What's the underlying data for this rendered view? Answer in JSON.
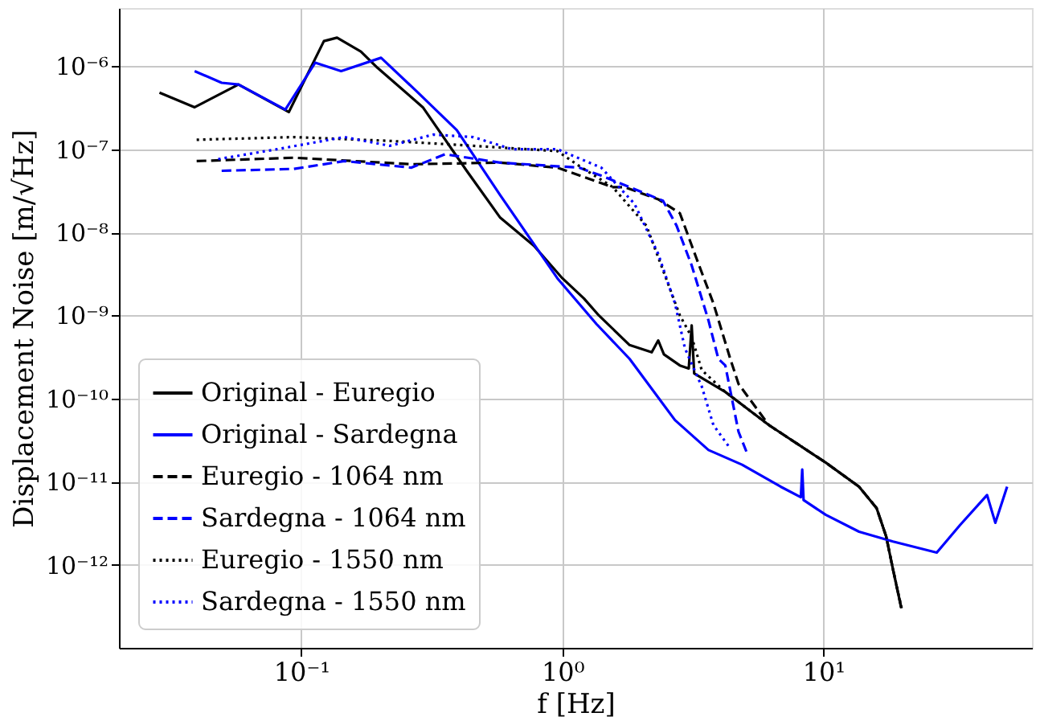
{
  "chart_data": {
    "type": "line",
    "xlabel": "f [Hz]",
    "ylabel": "Displacement Noise [m/√Hz]",
    "log": "xy",
    "grid": true,
    "legend": "bottom left",
    "xlim": [
      0.02,
      63
    ],
    "ylim": [
      1e-13,
      5e-06
    ],
    "xticks": [
      {
        "value": 0.1,
        "label": "10⁻¹"
      },
      {
        "value": 1,
        "label": "10⁰"
      },
      {
        "value": 10,
        "label": "10¹"
      }
    ],
    "yticks": [
      {
        "value": 1e-12,
        "label": "10⁻¹²"
      },
      {
        "value": 1e-11,
        "label": "10⁻¹¹"
      },
      {
        "value": 1e-10,
        "label": "10⁻¹⁰"
      },
      {
        "value": 1e-09,
        "label": "10⁻⁹"
      },
      {
        "value": 1e-08,
        "label": "10⁻⁸"
      },
      {
        "value": 1e-07,
        "label": "10⁻⁷"
      },
      {
        "value": 1e-06,
        "label": "10⁻⁶"
      }
    ],
    "series": [
      {
        "name": "Original - Euregio",
        "color": "#000000",
        "line_style": "solid",
        "x": [
          0.0286,
          0.039,
          0.0574,
          0.0895,
          0.122,
          0.137,
          0.169,
          0.196,
          0.292,
          0.43,
          0.578,
          0.778,
          1.0,
          1.21,
          1.38,
          1.81,
          2.2,
          2.33,
          2.45,
          2.82,
          3.05,
          3.13,
          3.2,
          4.21,
          6.18,
          10.2,
          13.7,
          16.0,
          17.4,
          18.5,
          19.9
        ],
        "values": [
          4.8e-07,
          3.2e-07,
          6e-07,
          2.8e-07,
          2e-06,
          2.2e-06,
          1.5e-06,
          9.5e-07,
          3.2e-07,
          5.5e-08,
          1.5e-08,
          6.9e-09,
          2.8e-09,
          1.6e-09,
          1e-09,
          4.4e-10,
          3.6e-10,
          5e-10,
          3.4e-10,
          2.5e-10,
          2.3e-10,
          7.6e-10,
          2e-10,
          1.2e-10,
          4.8e-11,
          1.7e-11,
          8.7e-12,
          4.8e-12,
          2.2e-12,
          8.7e-13,
          3e-13
        ]
      },
      {
        "name": "Original - Sardegna",
        "color": "#0000ff",
        "line_style": "solid",
        "x": [
          0.039,
          0.0495,
          0.0574,
          0.0868,
          0.113,
          0.142,
          0.202,
          0.276,
          0.394,
          0.578,
          0.957,
          1.35,
          1.81,
          2.7,
          3.63,
          4.88,
          6.86,
          8.2,
          8.3,
          8.4,
          10.2,
          13.7,
          18.5,
          27.2,
          33.4,
          42.4,
          45.6,
          50.6
        ],
        "values": [
          8.7e-07,
          6.3e-07,
          6e-07,
          3e-07,
          1.1e-06,
          8.7e-07,
          1.26e-06,
          5e-07,
          1.7e-07,
          2.8e-08,
          2.8e-09,
          7.9e-10,
          3e-10,
          5.5e-11,
          2.4e-11,
          1.6e-11,
          8.7e-12,
          6.5e-12,
          1.4e-11,
          6e-12,
          4e-12,
          2.5e-12,
          1.9e-12,
          1.4e-12,
          3e-12,
          6.9e-12,
          3.2e-12,
          8.7e-12
        ]
      },
      {
        "name": "Euregio - 1064 nm",
        "color": "#000000",
        "line_style": "dashed",
        "x": [
          0.0397,
          0.0935,
          0.264,
          0.578,
          0.957,
          1.56,
          1.73,
          2.33,
          2.82,
          3.27,
          3.79,
          4.4,
          4.73,
          6.18,
          10.2,
          13.7,
          16.0,
          17.4,
          18.5,
          19.9
        ],
        "values": [
          7.2e-08,
          7.9e-08,
          6.6e-08,
          6.9e-08,
          6e-08,
          3.5e-08,
          3.5e-08,
          2.5e-08,
          1.7e-08,
          4.8e-09,
          1.4e-09,
          3e-10,
          1.5e-10,
          4.8e-11,
          1.7e-11,
          8.7e-12,
          4.8e-12,
          2.2e-12,
          8.7e-13,
          3e-13
        ]
      },
      {
        "name": "Sardegna - 1064 nm",
        "color": "#0000ff",
        "line_style": "dashed",
        "x": [
          0.0495,
          0.0935,
          0.146,
          0.264,
          0.355,
          0.578,
          1.16,
          1.41,
          2.43,
          2.74,
          3.13,
          3.63,
          3.96,
          4.21,
          4.73,
          5.1
        ],
        "values": [
          5.5e-08,
          5.8e-08,
          7.2e-08,
          6e-08,
          8.7e-08,
          6.9e-08,
          6e-08,
          4.8e-08,
          2.4e-08,
          1.2e-08,
          4e-09,
          8.7e-10,
          3e-10,
          2.5e-10,
          4e-11,
          2.2e-11
        ]
      },
      {
        "name": "Euregio - 1550 nm",
        "color": "#000000",
        "line_style": "dotted",
        "x": [
          0.0397,
          0.0935,
          0.218,
          0.456,
          0.957,
          1.16,
          1.56,
          2.1,
          2.43,
          2.82,
          3.13,
          3.42,
          4.21,
          6.18,
          10.2,
          13.7,
          16.0,
          17.4,
          18.5,
          20.1
        ],
        "values": [
          1.3e-07,
          1.4e-07,
          1.26e-07,
          1.1e-07,
          9.5e-08,
          6.3e-08,
          3.5e-08,
          1.2e-08,
          3.5e-09,
          1e-09,
          5.5e-10,
          2.2e-10,
          1.2e-10,
          4.8e-11,
          1.7e-11,
          8.7e-12,
          4.8e-12,
          2.2e-12,
          8.7e-13,
          2.7e-13
        ]
      },
      {
        "name": "Sardegna - 1550 nm",
        "color": "#0000ff",
        "line_style": "dotted",
        "x": [
          0.048,
          0.0807,
          0.146,
          0.218,
          0.32,
          0.456,
          0.641,
          0.957,
          1.41,
          1.89,
          2.33,
          2.7,
          2.95,
          3.42,
          3.79,
          4.4
        ],
        "values": [
          7.6e-08,
          1e-07,
          1.4e-07,
          1.1e-07,
          1.5e-07,
          1.4e-07,
          1e-07,
          1e-07,
          6e-08,
          2.2e-08,
          5.5e-09,
          1.4e-09,
          4e-10,
          1.4e-10,
          4.8e-11,
          2.5e-11
        ]
      }
    ]
  }
}
